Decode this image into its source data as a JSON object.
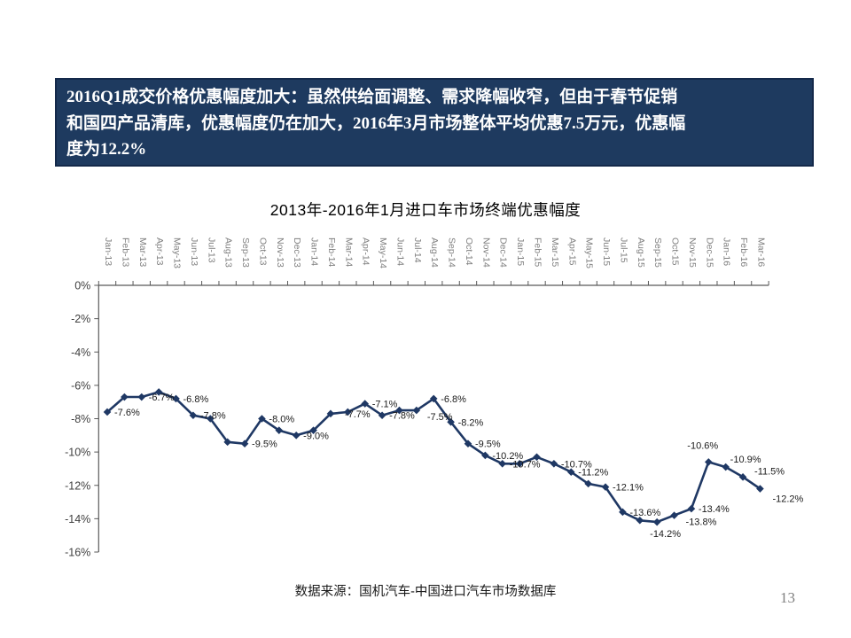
{
  "slide": {
    "headline": {
      "lines": [
        "2016Q1成交价格优惠幅度加大：虽然供给面调整、需求降幅收窄，但由于春节促销",
        "和国四产品清库，优惠幅度仍在加大，2016年3月市场整体平均优惠7.5万元，优惠幅",
        "度为12.2%"
      ],
      "bg_color": "#1E3A5F",
      "border_color": "#14294A",
      "text_color": "#FFFFFF"
    },
    "source_note": "数据来源：国机汽车-中国进口汽车市场数据库",
    "page_number": "13"
  },
  "chart_data": {
    "type": "line",
    "title": "2013年-2016年1月进口车市场终端优惠幅度",
    "unit": "%",
    "categories": [
      "Jan-13",
      "Feb-13",
      "Mar-13",
      "Apr-13",
      "May-13",
      "Jun-13",
      "Jul-13",
      "Aug-13",
      "Sep-13",
      "Oct-13",
      "Nov-13",
      "Dec-13",
      "Jan-14",
      "Feb-14",
      "Mar-14",
      "Apr-14",
      "May-14",
      "Jun-14",
      "Jul-14",
      "Aug-14",
      "Sep-14",
      "Oct-14",
      "Nov-14",
      "Dec-14",
      "Jan-15",
      "Feb-15",
      "Mar-15",
      "Apr-15",
      "May-15",
      "Jun-15",
      "Jul-15",
      "Aug-15",
      "Sep-15",
      "Oct-15",
      "Nov-15",
      "Dec-15",
      "Jan-16",
      "Feb-16",
      "Mar-16"
    ],
    "values": [
      -7.6,
      -6.7,
      -6.7,
      -6.4,
      -6.8,
      -7.8,
      -8.0,
      -9.4,
      -9.5,
      -8.0,
      -8.7,
      -9.0,
      -8.7,
      -7.7,
      -7.6,
      -7.1,
      -7.8,
      -7.5,
      -7.5,
      -6.8,
      -8.2,
      -9.5,
      -10.2,
      -10.7,
      -10.7,
      -10.3,
      -10.7,
      -11.2,
      -11.9,
      -12.1,
      -13.6,
      -14.1,
      -14.2,
      -13.8,
      -13.4,
      -10.6,
      -10.9,
      -11.5,
      -12.2
    ],
    "point_labels": [
      "-7.6%",
      null,
      "-6.7%",
      null,
      "-6.8%",
      "-7.8%",
      null,
      null,
      "-9.5%",
      "-8.0%",
      null,
      "-9.0%",
      null,
      "-7.7%",
      null,
      "-7.1%",
      "-7.8%",
      null,
      "-7.5%",
      "-6.8%",
      "-8.2%",
      "-9.5%",
      "-10.2%",
      "-10.7%",
      null,
      null,
      "-10.7%",
      "-11.2%",
      null,
      "-12.1%",
      "-13.6%",
      null,
      "-14.2%",
      "-13.8%",
      "-13.4%",
      "-10.6%",
      "-10.9%",
      "-11.5%",
      "-12.2%"
    ],
    "ylim": [
      -16,
      0
    ],
    "yticks": [
      0,
      -2,
      -4,
      -6,
      -8,
      -10,
      -12,
      -14,
      -16
    ],
    "gridlines": false,
    "legend": false,
    "marker": "diamond",
    "line_color": "#1F3864",
    "axis_color": "#595959",
    "xtick_label_color": "#7F7F7F",
    "ytick_label_color": "#3F3F3F",
    "data_label_color": "#1A1A1A"
  }
}
